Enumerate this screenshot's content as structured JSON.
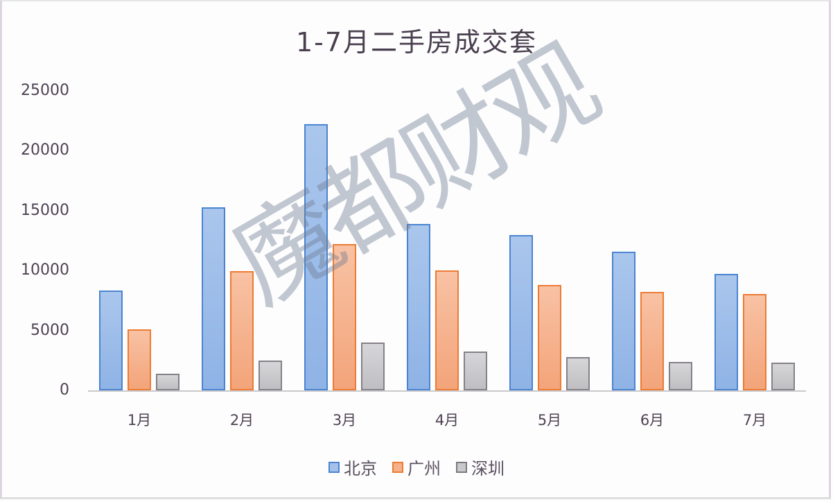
{
  "chart_data": {
    "type": "bar",
    "title": "1-7月二手房成交套",
    "xlabel": "",
    "ylabel": "",
    "categories": [
      "1月",
      "2月",
      "3月",
      "4月",
      "5月",
      "6月",
      "7月"
    ],
    "series": [
      {
        "name": "北京",
        "color": "#4a84d0",
        "values": [
          8330,
          15280,
          22220,
          13890,
          12960,
          11570,
          9720
        ]
      },
      {
        "name": "广州",
        "color": "#ec7b33",
        "values": [
          5090,
          9950,
          12210,
          10010,
          8800,
          8220,
          8040
        ]
      },
      {
        "name": "深圳",
        "color": "#858088",
        "values": [
          1390,
          2490,
          3990,
          3240,
          2780,
          2370,
          2310
        ]
      }
    ],
    "ylim": [
      0,
      25000
    ],
    "yticks": [
      "25000",
      "20000",
      "15000",
      "10000",
      "5000",
      "0"
    ],
    "grid": false,
    "legend_position": "bottom"
  },
  "watermark": "魔都财观"
}
